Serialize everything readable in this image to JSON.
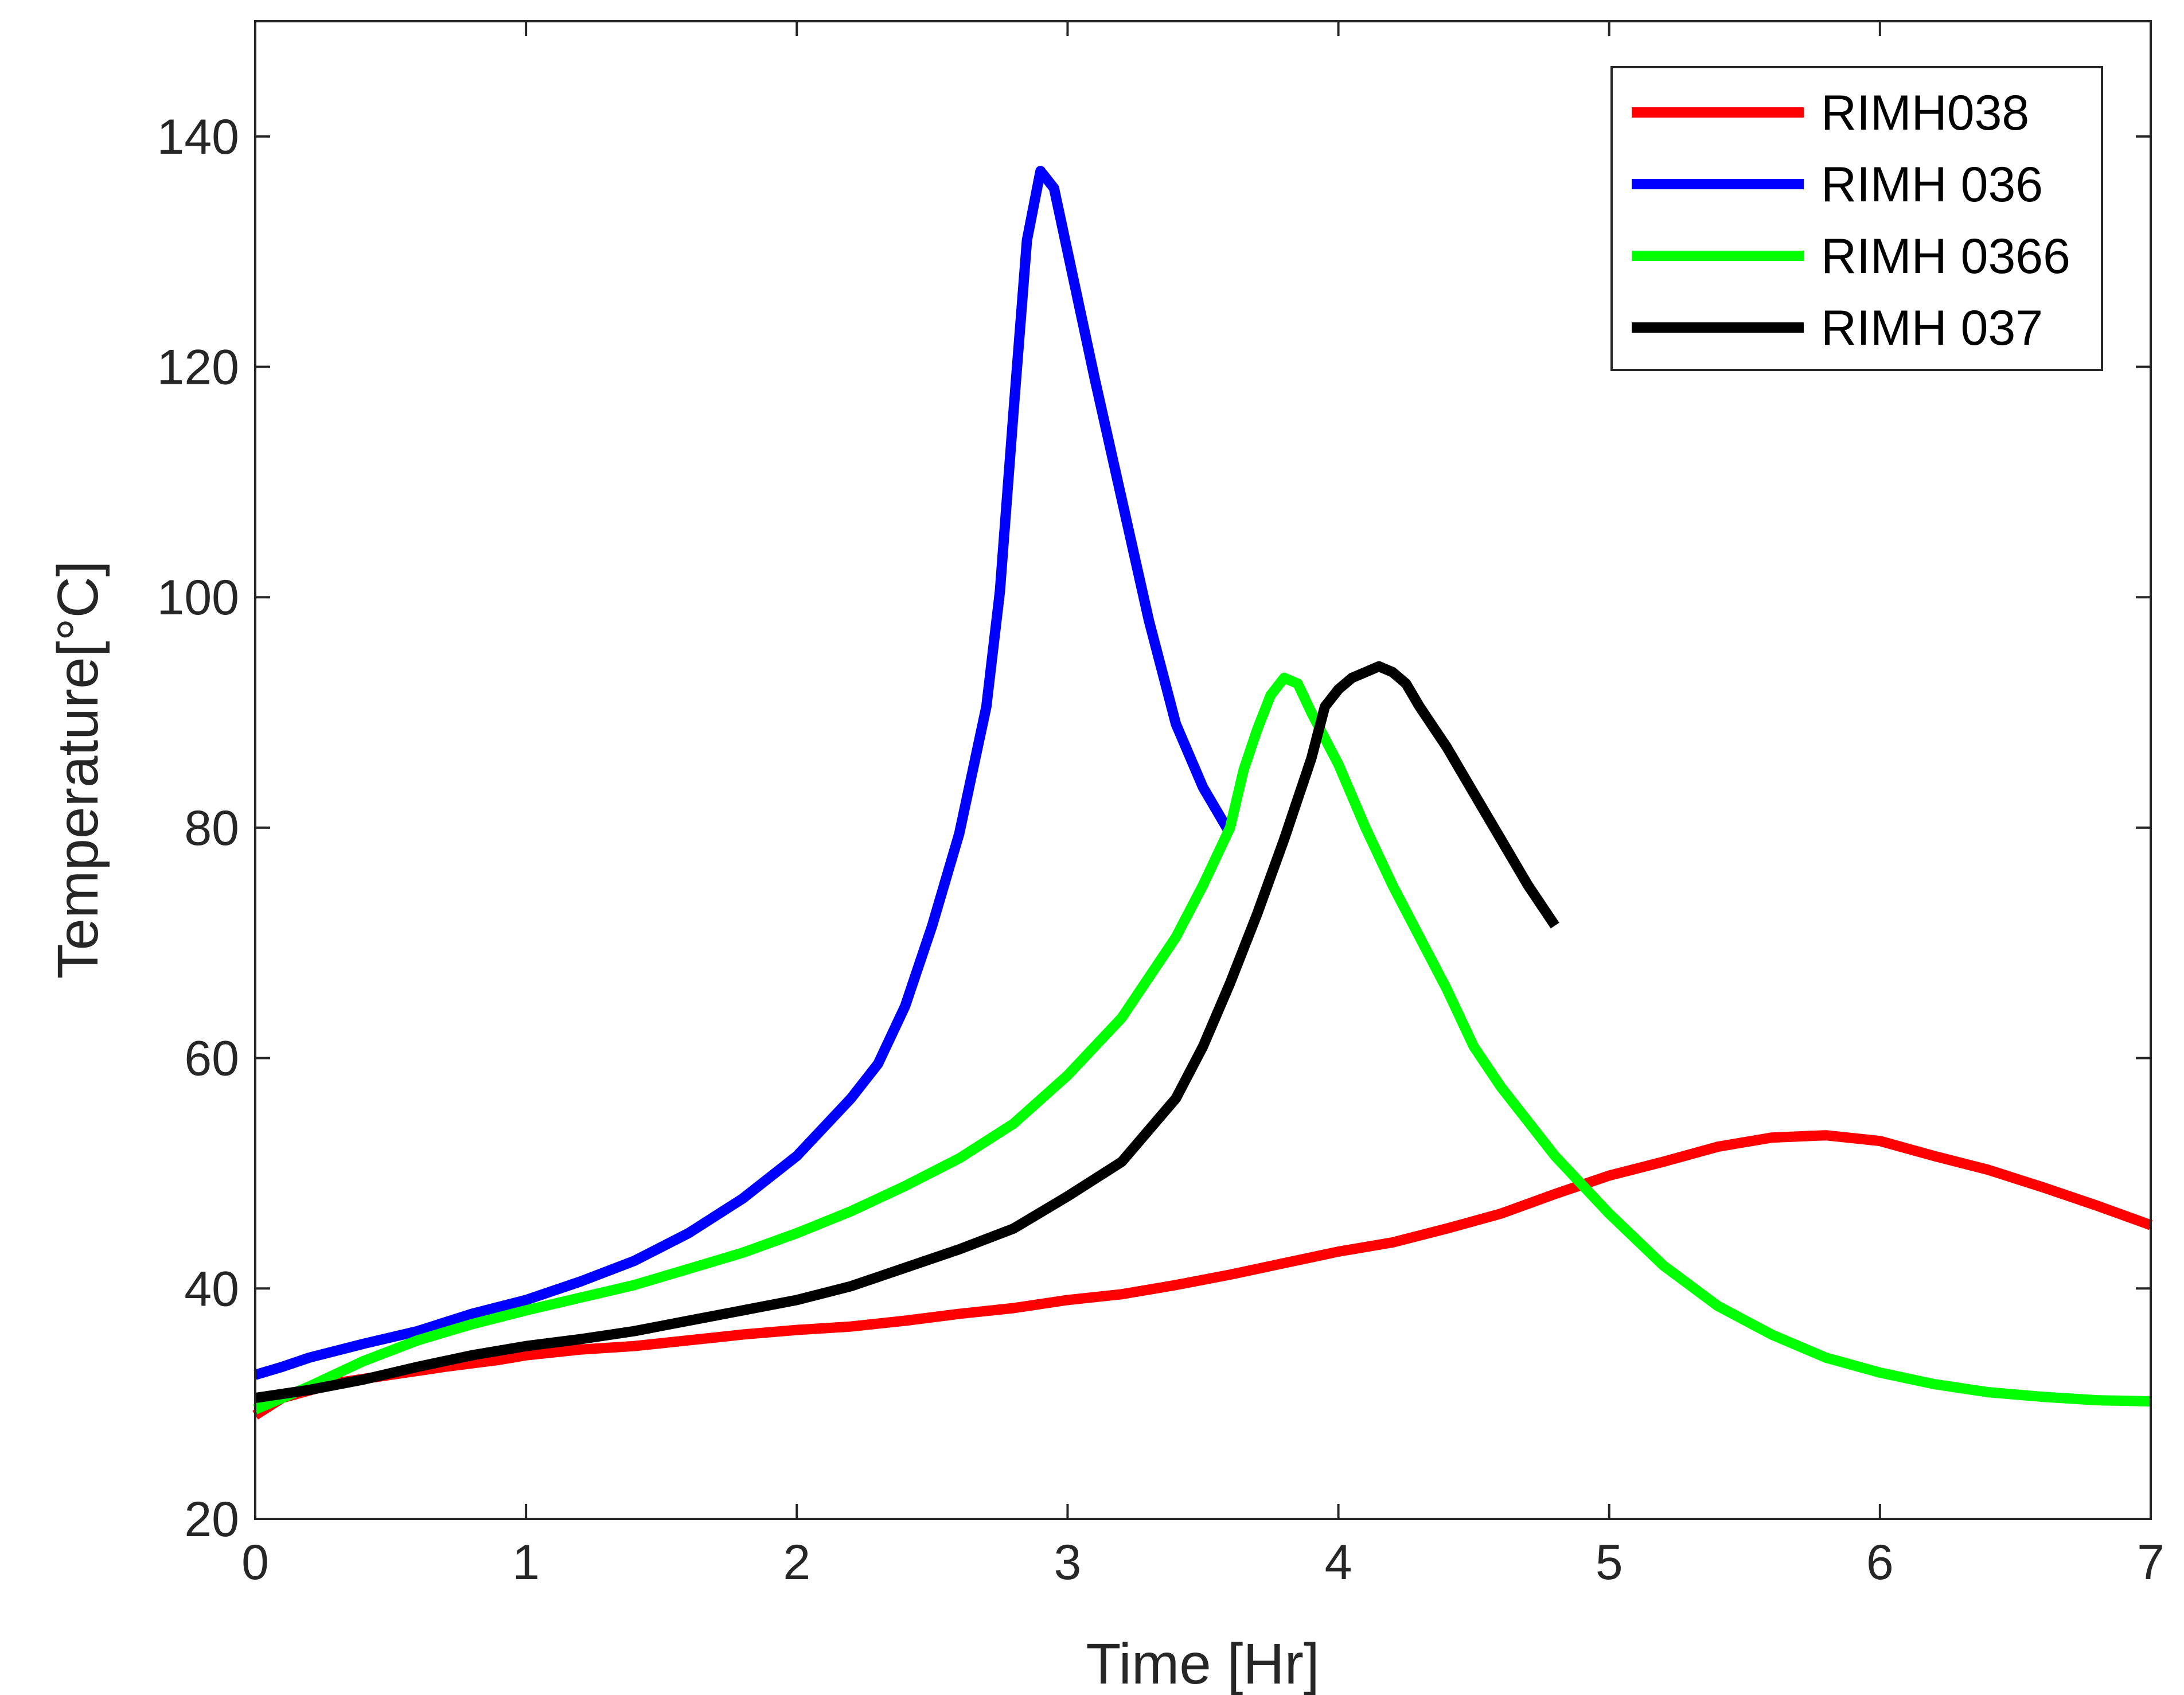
{
  "chart_data": {
    "type": "line",
    "title": "",
    "xlabel": "Time [Hr]",
    "ylabel": "Temperature[°C]",
    "xlim": [
      0,
      7
    ],
    "ylim": [
      20,
      150
    ],
    "xticks": [
      0,
      1,
      2,
      3,
      4,
      5,
      6,
      7
    ],
    "yticks": [
      20,
      40,
      60,
      80,
      100,
      120,
      140
    ],
    "grid": false,
    "legend_position": "top-right",
    "series": [
      {
        "name": "RIMH038",
        "color": "#ff0000",
        "x": [
          0,
          0.1,
          0.3,
          0.5,
          0.7,
          0.9,
          1.0,
          1.2,
          1.4,
          1.6,
          1.8,
          2.0,
          2.2,
          2.4,
          2.6,
          2.8,
          3.0,
          3.2,
          3.4,
          3.6,
          3.8,
          4.0,
          4.2,
          4.4,
          4.6,
          4.8,
          5.0,
          5.2,
          5.4,
          5.6,
          5.8,
          6.0,
          6.2,
          6.4,
          6.6,
          6.8,
          7.0
        ],
        "y": [
          29,
          30.5,
          31.8,
          32.5,
          33.2,
          33.8,
          34.2,
          34.7,
          35.0,
          35.5,
          36.0,
          36.4,
          36.7,
          37.2,
          37.8,
          38.3,
          39.0,
          39.5,
          40.3,
          41.2,
          42.2,
          43.2,
          44.0,
          45.2,
          46.5,
          48.2,
          49.8,
          51.0,
          52.3,
          53.1,
          53.3,
          52.8,
          51.5,
          50.3,
          48.8,
          47.2,
          45.5
        ]
      },
      {
        "name": "RIMH 036",
        "color": "#0000ff",
        "x": [
          0,
          0.1,
          0.2,
          0.4,
          0.6,
          0.8,
          1.0,
          1.2,
          1.4,
          1.6,
          1.8,
          2.0,
          2.2,
          2.3,
          2.4,
          2.5,
          2.6,
          2.7,
          2.75,
          2.8,
          2.85,
          2.9,
          2.95,
          3.0,
          3.1,
          3.2,
          3.3,
          3.4,
          3.5,
          3.6
        ],
        "y": [
          32.5,
          33.2,
          34.0,
          35.2,
          36.3,
          37.8,
          39.0,
          40.6,
          42.4,
          44.8,
          47.8,
          51.5,
          56.5,
          59.5,
          64.5,
          71.5,
          79.5,
          90.5,
          100.5,
          116.0,
          131.0,
          137.0,
          135.5,
          130.0,
          119.0,
          108.5,
          98.0,
          89.0,
          83.5,
          79.5
        ]
      },
      {
        "name": "RIMH 0366",
        "color": "#00ff00",
        "x": [
          0,
          0.2,
          0.4,
          0.6,
          0.8,
          1.0,
          1.2,
          1.4,
          1.6,
          1.8,
          2.0,
          2.2,
          2.4,
          2.6,
          2.8,
          3.0,
          3.2,
          3.4,
          3.5,
          3.6,
          3.65,
          3.7,
          3.75,
          3.8,
          3.85,
          3.9,
          4.0,
          4.1,
          4.2,
          4.3,
          4.4,
          4.5,
          4.6,
          4.8,
          5.0,
          5.2,
          5.4,
          5.6,
          5.8,
          6.0,
          6.2,
          6.4,
          6.6,
          6.8,
          7.0
        ],
        "y": [
          29.5,
          31.5,
          33.7,
          35.5,
          36.9,
          38.1,
          39.2,
          40.3,
          41.7,
          43.1,
          44.8,
          46.7,
          48.9,
          51.3,
          54.3,
          58.5,
          63.5,
          70.5,
          75.0,
          80.0,
          85.0,
          88.5,
          91.5,
          93.0,
          92.5,
          90.0,
          85.5,
          80.0,
          75.0,
          70.5,
          66.0,
          61.0,
          57.5,
          51.5,
          46.5,
          42.0,
          38.5,
          36.0,
          34.0,
          32.7,
          31.7,
          31.0,
          30.6,
          30.3,
          30.2
        ]
      },
      {
        "name": "RIMH 037",
        "color": "#000000",
        "x": [
          0,
          0.2,
          0.4,
          0.6,
          0.8,
          1.0,
          1.2,
          1.4,
          1.6,
          1.8,
          2.0,
          2.2,
          2.4,
          2.6,
          2.8,
          3.0,
          3.2,
          3.4,
          3.5,
          3.6,
          3.7,
          3.8,
          3.9,
          3.95,
          4.0,
          4.05,
          4.1,
          4.15,
          4.2,
          4.25,
          4.3,
          4.4,
          4.5,
          4.6,
          4.7,
          4.8
        ],
        "y": [
          30.5,
          31.2,
          32.1,
          33.2,
          34.2,
          35.0,
          35.6,
          36.3,
          37.2,
          38.1,
          39.0,
          40.2,
          41.8,
          43.4,
          45.2,
          48.0,
          51.0,
          56.5,
          61.0,
          66.5,
          72.5,
          79.0,
          86.0,
          90.5,
          92.0,
          93.0,
          93.5,
          94.0,
          93.5,
          92.5,
          90.5,
          87.0,
          83.0,
          79.0,
          75.0,
          71.5
        ]
      }
    ]
  }
}
